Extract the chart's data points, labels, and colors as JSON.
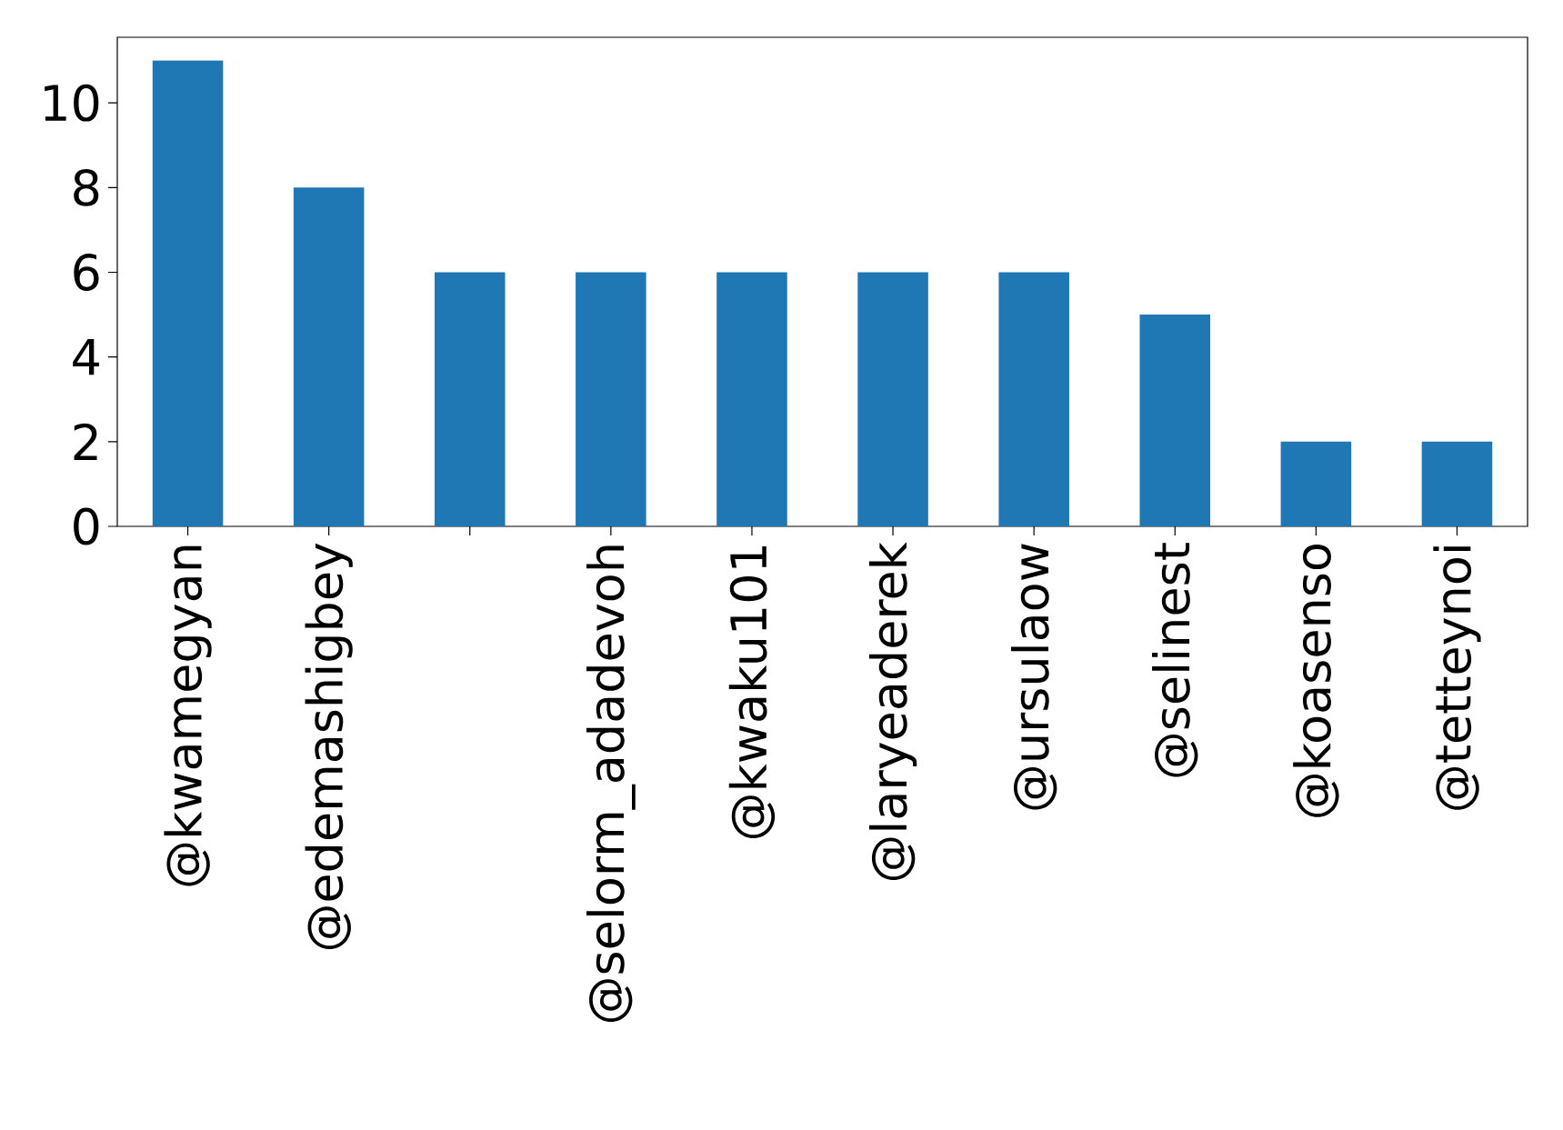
{
  "chart_data": {
    "type": "bar",
    "categories": [
      "@kwamegyan",
      "@edemashigbey",
      null,
      "@selorm_adadevoh",
      "@kwaku101",
      "@laryeaderek",
      "@ursulaow",
      "@selinest",
      "@koasenso",
      "@tetteynoi"
    ],
    "values": [
      11,
      8,
      6,
      6,
      6,
      6,
      6,
      5,
      2,
      2
    ],
    "color": "#1f77b4",
    "ylim": [
      0,
      11.55
    ],
    "yticks": [
      0,
      2,
      4,
      6,
      8,
      10
    ]
  }
}
